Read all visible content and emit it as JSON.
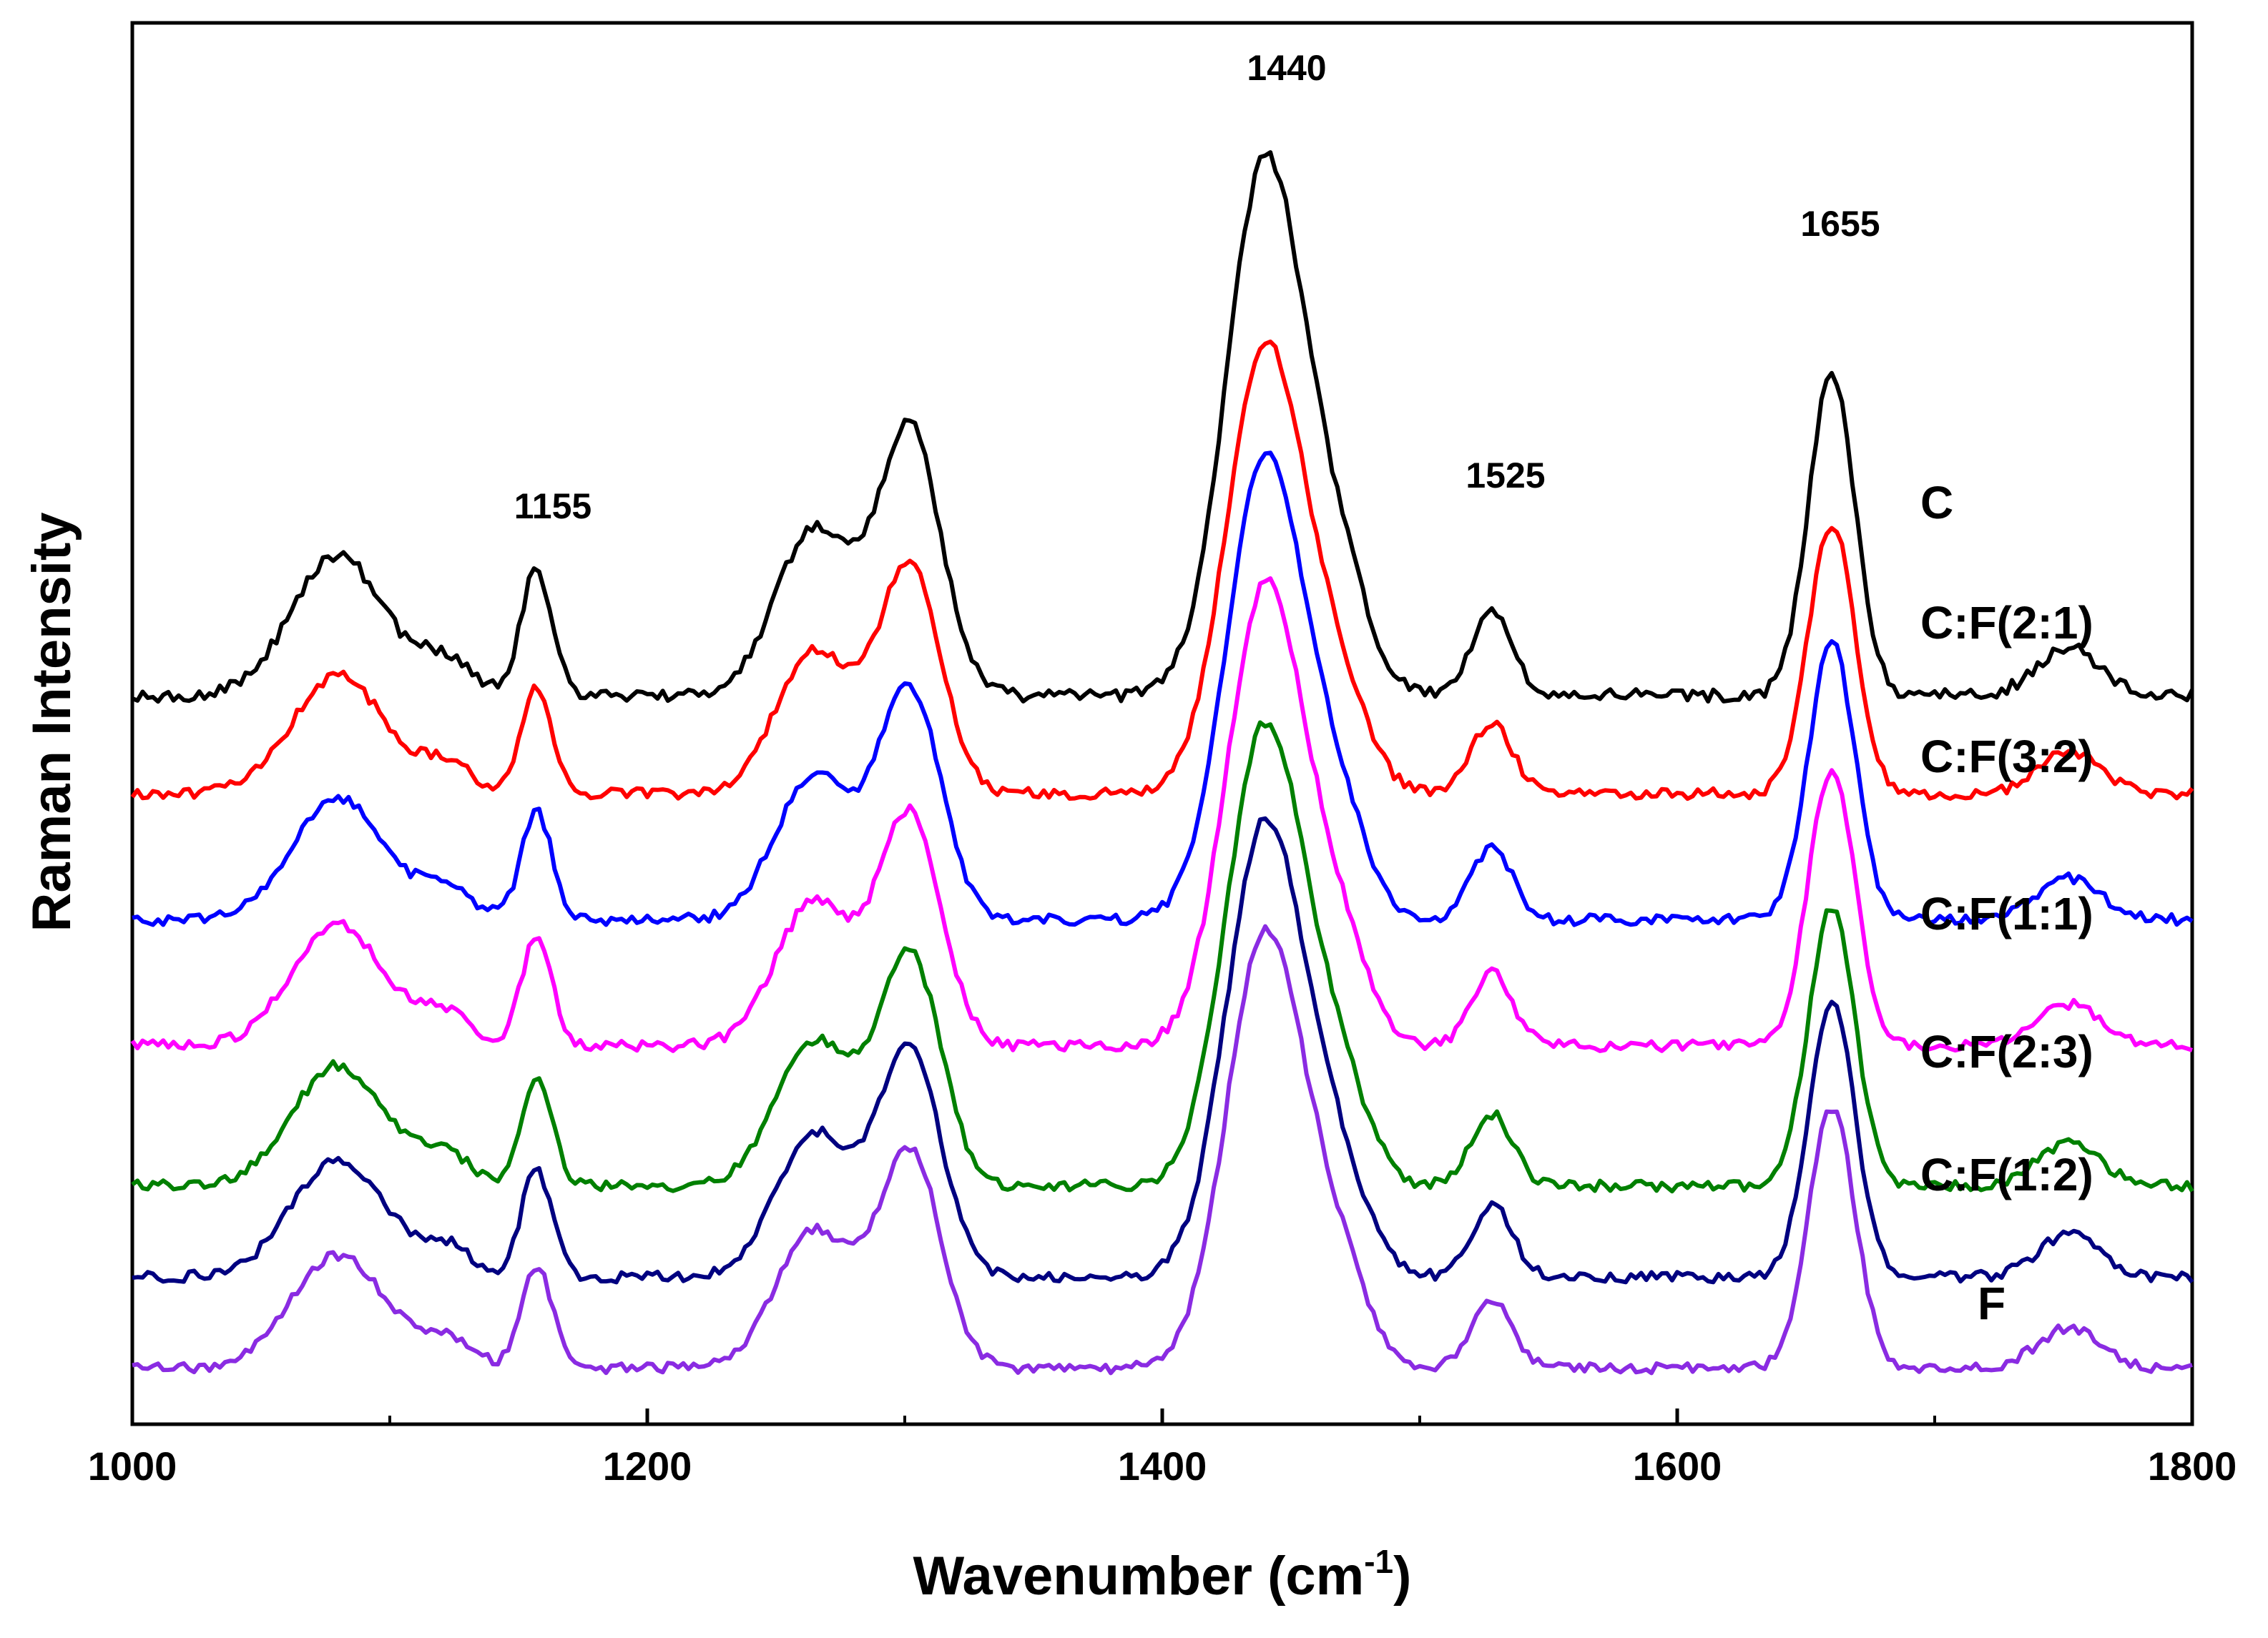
{
  "chart_data": {
    "type": "line",
    "title": "",
    "xlabel": "Wavenumber (cm",
    "xlabel_sup": "-1",
    "xlabel_close": ")",
    "ylabel": "Raman Intensity",
    "xlim": [
      1000,
      1800
    ],
    "ylim": [
      0,
      100
    ],
    "xticks": [
      1000,
      1200,
      1400,
      1600,
      1800
    ],
    "y_ticklabels_shown": false,
    "grid": false,
    "peaks": [
      {
        "position": 1155,
        "label": "1155"
      },
      {
        "position": 1440,
        "label": "1440"
      },
      {
        "position": 1525,
        "label": "1525"
      },
      {
        "position": 1655,
        "label": "1655"
      }
    ],
    "series": [
      {
        "name": "C",
        "color": "#000000",
        "baseline": 52,
        "scale": 1.0
      },
      {
        "name": "C:F(2:1)",
        "color": "#ff0000",
        "baseline": 45,
        "scale": 0.84
      },
      {
        "name": "C:F(3:2)",
        "color": "#0000ff",
        "baseline": 36,
        "scale": 0.86
      },
      {
        "name": "C:F(1:1)",
        "color": "#ff00ff",
        "baseline": 27,
        "scale": 0.86
      },
      {
        "name": "C:F(2:3)",
        "color": "#008000",
        "baseline": 17,
        "scale": 0.86
      },
      {
        "name": "C:F(1:2)",
        "color": "#000080",
        "baseline": 10.5,
        "scale": 0.85
      },
      {
        "name": "F",
        "color": "#8a2be2",
        "baseline": 4,
        "scale": 0.81
      }
    ],
    "component_bands": [
      {
        "center": 1080,
        "width": 18,
        "height": 10
      },
      {
        "center": 1122,
        "width": 10,
        "height": 2.5
      },
      {
        "center": 1157,
        "width": 6,
        "height": 9
      },
      {
        "center": 1265,
        "width": 15,
        "height": 12
      },
      {
        "center": 1302,
        "width": 12,
        "height": 19
      },
      {
        "center": 1440,
        "width": 15,
        "height": 38
      },
      {
        "center": 1468,
        "width": 12,
        "height": 8
      },
      {
        "center": 1528,
        "width": 8,
        "height": 6
      },
      {
        "center": 1660,
        "width": 9,
        "height": 23
      },
      {
        "center": 1752,
        "width": 12,
        "height": 3.5
      }
    ]
  }
}
